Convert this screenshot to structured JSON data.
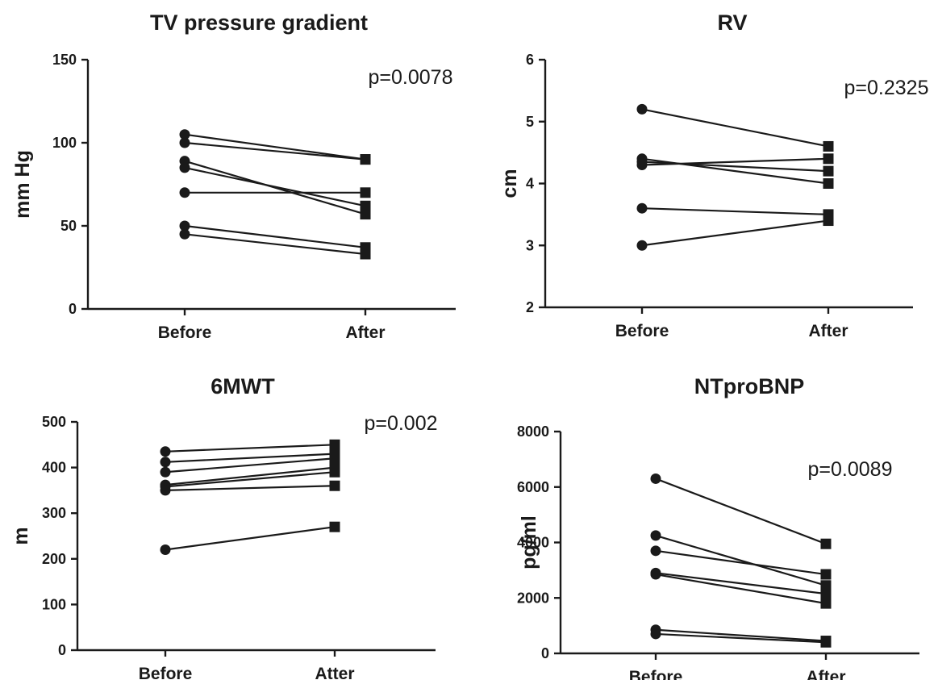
{
  "chart_data": [
    {
      "type": "line",
      "title": "TV pressure gradient",
      "ylabel": "mm Hg",
      "categories": [
        "Before",
        "After"
      ],
      "ylim": [
        0,
        150
      ],
      "yticks": [
        0,
        50,
        100,
        150
      ],
      "annotation": "p=0.0078",
      "series": [
        {
          "values": [
            105,
            90
          ]
        },
        {
          "values": [
            100,
            90
          ]
        },
        {
          "values": [
            89,
            57
          ]
        },
        {
          "values": [
            85,
            62
          ]
        },
        {
          "values": [
            70,
            70
          ]
        },
        {
          "values": [
            50,
            37
          ]
        },
        {
          "values": [
            45,
            33
          ]
        }
      ]
    },
    {
      "type": "line",
      "title": "RV",
      "ylabel": "cm",
      "categories": [
        "Before",
        "After"
      ],
      "ylim": [
        2,
        6
      ],
      "yticks": [
        2,
        3,
        4,
        5,
        6
      ],
      "annotation": "p=0.2325",
      "series": [
        {
          "values": [
            5.2,
            4.6
          ]
        },
        {
          "values": [
            4.4,
            4.0
          ]
        },
        {
          "values": [
            4.35,
            4.2
          ]
        },
        {
          "values": [
            4.3,
            4.4
          ]
        },
        {
          "values": [
            3.6,
            3.5
          ]
        },
        {
          "values": [
            3.0,
            3.4
          ]
        }
      ]
    },
    {
      "type": "line",
      "title": "6MWT",
      "ylabel": "m",
      "categories": [
        "Before",
        "Atter"
      ],
      "ylim": [
        0,
        500
      ],
      "yticks": [
        0,
        100,
        200,
        300,
        400,
        500
      ],
      "annotation": "p=0.002",
      "series": [
        {
          "values": [
            435,
            450
          ]
        },
        {
          "values": [
            412,
            430
          ]
        },
        {
          "values": [
            390,
            420
          ]
        },
        {
          "values": [
            362,
            400
          ]
        },
        {
          "values": [
            358,
            390
          ]
        },
        {
          "values": [
            350,
            360
          ]
        },
        {
          "values": [
            220,
            270
          ]
        }
      ]
    },
    {
      "type": "line",
      "title": "NTproBNP",
      "ylabel": "pg/ml",
      "categories": [
        "Before",
        "After"
      ],
      "ylim": [
        0,
        8000
      ],
      "yticks": [
        0,
        2000,
        4000,
        6000,
        8000
      ],
      "annotation": "p=0.0089",
      "series": [
        {
          "values": [
            6300,
            3950
          ]
        },
        {
          "values": [
            4250,
            2450
          ]
        },
        {
          "values": [
            3700,
            2850
          ]
        },
        {
          "values": [
            2900,
            2150
          ]
        },
        {
          "values": [
            2850,
            1800
          ]
        },
        {
          "values": [
            850,
            450
          ]
        },
        {
          "values": [
            700,
            400
          ]
        }
      ]
    }
  ]
}
